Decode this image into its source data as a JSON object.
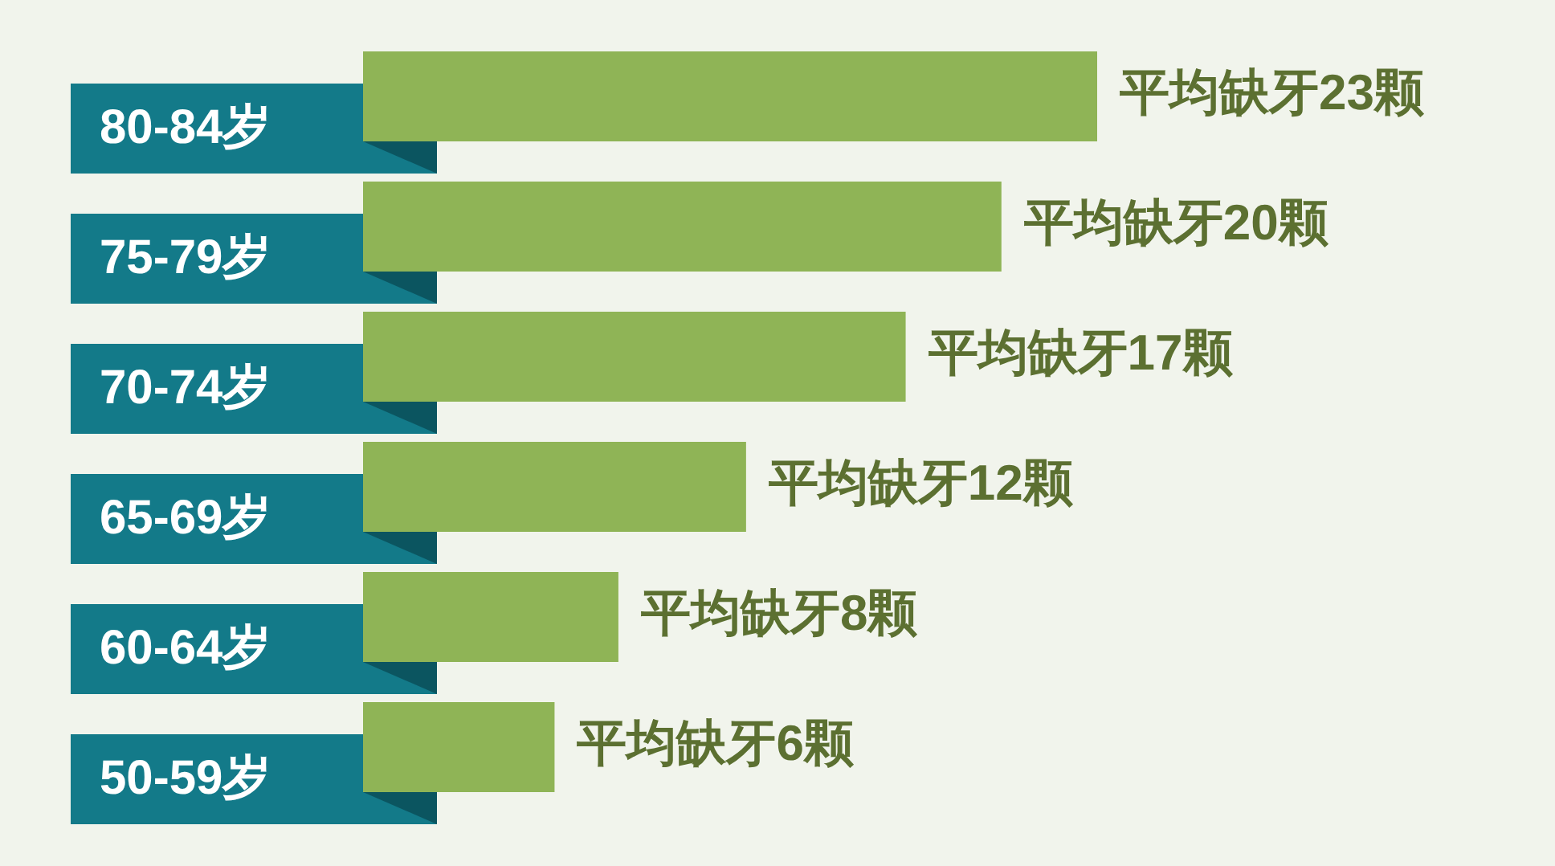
{
  "chart_data": {
    "type": "bar",
    "orientation": "horizontal",
    "categories": [
      "80-84岁",
      "75-79岁",
      "70-74岁",
      "65-69岁",
      "60-64岁",
      "50-59岁"
    ],
    "values": [
      23,
      20,
      17,
      12,
      8,
      6
    ],
    "value_labels": [
      "平均缺牙23颗",
      "平均缺牙20颗",
      "平均缺牙17颗",
      "平均缺牙12颗",
      "平均缺牙8颗",
      "平均缺牙6颗"
    ],
    "color": "#8fb456"
  }
}
